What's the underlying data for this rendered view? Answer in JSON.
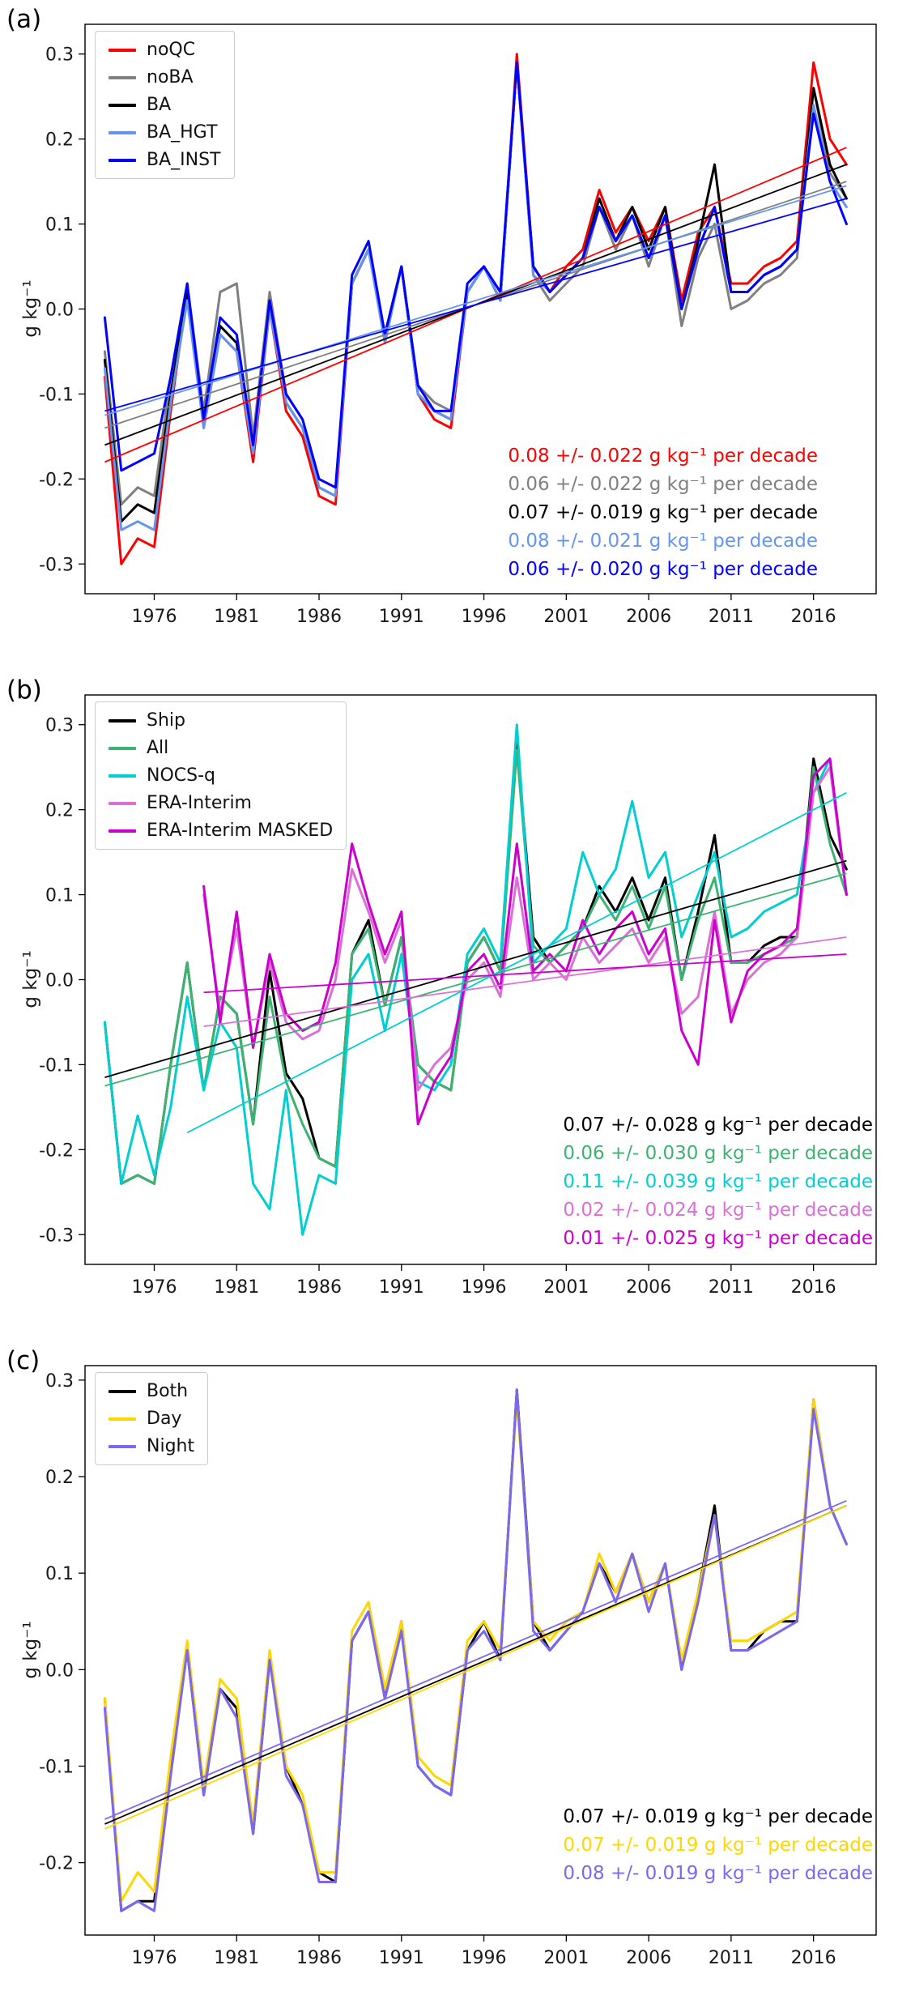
{
  "figure": {
    "background": "#ffffff",
    "panel_count": 3
  },
  "chart_data": [
    {
      "type": "line",
      "panel_label": "(a)",
      "ylabel": "g kg⁻¹",
      "x_start": 1973,
      "xlim": [
        1971.8,
        2019.8
      ],
      "ylim": [
        -0.335,
        0.335
      ],
      "x_ticks": [
        1976,
        1981,
        1986,
        1991,
        1996,
        2001,
        2006,
        2011,
        2016
      ],
      "y_ticks": [
        -0.3,
        -0.2,
        -0.1,
        0.0,
        0.1,
        0.2,
        0.3
      ],
      "legend_position": "top-left",
      "grid": false,
      "series": [
        {
          "name": "noQC",
          "color": "#ff0000",
          "values": [
            -0.08,
            -0.3,
            -0.27,
            -0.28,
            -0.12,
            0.02,
            -0.14,
            -0.03,
            -0.05,
            -0.18,
            0.0,
            -0.12,
            -0.15,
            -0.22,
            -0.23,
            0.03,
            0.07,
            -0.03,
            0.05,
            -0.1,
            -0.13,
            -0.14,
            0.02,
            0.05,
            0.01,
            0.3,
            0.05,
            0.02,
            0.05,
            0.07,
            0.14,
            0.09,
            0.12,
            0.08,
            0.12,
            0.01,
            0.09,
            0.12,
            0.03,
            0.03,
            0.05,
            0.06,
            0.08,
            0.29,
            0.2,
            0.17
          ],
          "trend": {
            "x": [
              1973,
              2018
            ],
            "y": [
              -0.18,
              0.19
            ]
          },
          "annotation": "0.08 +/- 0.022 g kg⁻¹ per decade"
        },
        {
          "name": "noBA",
          "color": "#808080",
          "values": [
            -0.05,
            -0.23,
            -0.21,
            -0.22,
            -0.08,
            0.03,
            -0.12,
            0.02,
            0.03,
            -0.15,
            0.02,
            -0.1,
            -0.13,
            -0.2,
            -0.21,
            0.03,
            0.07,
            -0.03,
            0.05,
            -0.09,
            -0.11,
            -0.12,
            0.02,
            0.05,
            0.01,
            0.29,
            0.04,
            0.01,
            0.03,
            0.05,
            0.12,
            0.07,
            0.11,
            0.05,
            0.11,
            -0.02,
            0.06,
            0.1,
            0.0,
            0.01,
            0.03,
            0.04,
            0.06,
            0.26,
            0.16,
            0.13
          ],
          "trend": {
            "x": [
              1973,
              2018
            ],
            "y": [
              -0.14,
              0.15
            ]
          },
          "annotation": "0.06 +/- 0.022 g kg⁻¹ per decade"
        },
        {
          "name": "BA",
          "color": "#000000",
          "values": [
            -0.06,
            -0.25,
            -0.23,
            -0.24,
            -0.1,
            0.02,
            -0.13,
            -0.02,
            -0.04,
            -0.17,
            0.01,
            -0.11,
            -0.14,
            -0.21,
            -0.22,
            0.03,
            0.07,
            -0.03,
            0.05,
            -0.1,
            -0.12,
            -0.13,
            0.02,
            0.05,
            0.01,
            0.29,
            0.05,
            0.02,
            0.04,
            0.06,
            0.13,
            0.08,
            0.12,
            0.07,
            0.12,
            0.0,
            0.08,
            0.17,
            0.02,
            0.02,
            0.04,
            0.05,
            0.07,
            0.26,
            0.17,
            0.13
          ],
          "trend": {
            "x": [
              1973,
              2018
            ],
            "y": [
              -0.16,
              0.17
            ]
          },
          "annotation": "0.07 +/- 0.019 g kg⁻¹ per decade"
        },
        {
          "name": "BA_HGT",
          "color": "#6495ed",
          "values": [
            -0.07,
            -0.26,
            -0.25,
            -0.26,
            -0.11,
            0.01,
            -0.14,
            -0.03,
            -0.05,
            -0.17,
            0.0,
            -0.11,
            -0.14,
            -0.21,
            -0.22,
            0.03,
            0.07,
            -0.04,
            0.05,
            -0.1,
            -0.12,
            -0.13,
            0.02,
            0.05,
            0.01,
            0.29,
            0.04,
            0.02,
            0.04,
            0.06,
            0.12,
            0.08,
            0.11,
            0.06,
            0.11,
            0.0,
            0.07,
            0.12,
            0.02,
            0.02,
            0.04,
            0.05,
            0.07,
            0.24,
            0.15,
            0.12
          ],
          "trend": {
            "x": [
              1973,
              2018
            ],
            "y": [
              -0.125,
              0.145
            ]
          },
          "annotation": "0.08 +/- 0.021 g kg⁻¹ per decade"
        },
        {
          "name": "BA_INST",
          "color": "#0000ff",
          "values": [
            -0.01,
            -0.19,
            -0.18,
            -0.17,
            -0.08,
            0.03,
            -0.13,
            -0.01,
            -0.03,
            -0.16,
            0.01,
            -0.1,
            -0.13,
            -0.2,
            -0.21,
            0.04,
            0.08,
            -0.03,
            0.05,
            -0.09,
            -0.12,
            -0.12,
            0.03,
            0.05,
            0.02,
            0.29,
            0.05,
            0.02,
            0.04,
            0.06,
            0.12,
            0.08,
            0.11,
            0.06,
            0.11,
            0.0,
            0.07,
            0.12,
            0.02,
            0.02,
            0.04,
            0.05,
            0.07,
            0.23,
            0.15,
            0.1
          ],
          "trend": {
            "x": [
              1973,
              2018
            ],
            "y": [
              -0.12,
              0.13
            ]
          },
          "annotation": "0.06 +/- 0.020 g kg⁻¹ per decade"
        }
      ]
    },
    {
      "type": "line",
      "panel_label": "(b)",
      "ylabel": "g kg⁻¹",
      "x_start": 1973,
      "xlim": [
        1971.8,
        2019.8
      ],
      "ylim": [
        -0.335,
        0.335
      ],
      "x_ticks": [
        1976,
        1981,
        1986,
        1991,
        1996,
        2001,
        2006,
        2011,
        2016
      ],
      "y_ticks": [
        -0.3,
        -0.2,
        -0.1,
        0.0,
        0.1,
        0.2,
        0.3
      ],
      "legend_position": "top-left",
      "grid": false,
      "series": [
        {
          "name": "Ship",
          "color": "#000000",
          "values": [
            -0.05,
            -0.24,
            -0.23,
            -0.24,
            -0.1,
            0.02,
            -0.13,
            -0.02,
            -0.04,
            -0.17,
            0.01,
            -0.11,
            -0.14,
            -0.21,
            -0.22,
            0.03,
            0.07,
            -0.03,
            0.05,
            -0.1,
            -0.12,
            -0.13,
            0.02,
            0.05,
            0.01,
            0.28,
            0.05,
            0.02,
            0.04,
            0.06,
            0.11,
            0.08,
            0.12,
            0.07,
            0.12,
            0.0,
            0.08,
            0.17,
            0.02,
            0.02,
            0.04,
            0.05,
            0.05,
            0.26,
            0.17,
            0.13
          ],
          "trend": {
            "x": [
              1973,
              2018
            ],
            "y": [
              -0.115,
              0.14
            ]
          },
          "annotation": "0.07 +/- 0.028 g kg⁻¹ per decade"
        },
        {
          "name": "All",
          "color": "#3cb371",
          "values": [
            -0.05,
            -0.24,
            -0.23,
            -0.24,
            -0.1,
            0.02,
            -0.13,
            -0.02,
            -0.04,
            -0.17,
            -0.02,
            -0.12,
            -0.17,
            -0.21,
            -0.22,
            0.03,
            0.06,
            -0.03,
            0.05,
            -0.1,
            -0.12,
            -0.13,
            0.02,
            0.05,
            0.01,
            0.27,
            0.04,
            0.02,
            0.04,
            0.06,
            0.1,
            0.07,
            0.11,
            0.06,
            0.11,
            0.0,
            0.07,
            0.12,
            0.02,
            0.02,
            0.03,
            0.04,
            0.05,
            0.25,
            0.16,
            0.1
          ],
          "trend": {
            "x": [
              1973,
              2018
            ],
            "y": [
              -0.125,
              0.125
            ]
          },
          "annotation": "0.06 +/- 0.030 g kg⁻¹ per decade"
        },
        {
          "name": "NOCS-q",
          "color": "#00ced1",
          "values": [
            -0.05,
            -0.24,
            -0.16,
            -0.23,
            -0.15,
            -0.02,
            -0.13,
            -0.05,
            -0.08,
            -0.24,
            -0.27,
            -0.13,
            -0.3,
            -0.23,
            -0.24,
            0.0,
            0.03,
            -0.06,
            0.03,
            -0.12,
            -0.13,
            -0.1,
            0.03,
            0.06,
            0.02,
            0.3,
            0.02,
            0.04,
            0.06,
            0.15,
            0.1,
            0.13,
            0.21,
            0.12,
            0.15,
            0.05,
            0.1,
            0.15,
            0.05,
            0.06,
            0.08,
            0.09,
            0.1,
            0.22,
            0.26,
            0.1
          ],
          "trend": {
            "x": [
              1978,
              2018
            ],
            "y": [
              -0.18,
              0.22
            ]
          },
          "annotation": "0.11 +/- 0.039 g kg⁻¹ per decade"
        },
        {
          "name": "ERA-Interim",
          "color": "#da70d6",
          "values": [
            null,
            null,
            null,
            null,
            null,
            null,
            0.1,
            -0.04,
            0.06,
            -0.08,
            0.02,
            -0.05,
            -0.07,
            -0.06,
            0.0,
            0.13,
            0.08,
            0.02,
            0.07,
            -0.13,
            -0.1,
            -0.08,
            0.0,
            0.02,
            -0.02,
            0.12,
            0.0,
            0.02,
            0.0,
            0.05,
            0.02,
            0.04,
            0.06,
            0.02,
            0.05,
            -0.04,
            -0.02,
            0.08,
            -0.04,
            0.0,
            0.02,
            0.03,
            0.05,
            0.22,
            0.25,
            0.1
          ],
          "trend": {
            "x": [
              1979,
              2018
            ],
            "y": [
              -0.055,
              0.05
            ]
          },
          "annotation": "0.02 +/- 0.024 g kg⁻¹ per decade"
        },
        {
          "name": "ERA-Interim MASKED",
          "color": "#cc00cc",
          "values": [
            null,
            null,
            null,
            null,
            null,
            null,
            0.11,
            -0.05,
            0.08,
            -0.08,
            0.03,
            -0.04,
            -0.06,
            -0.05,
            0.02,
            0.16,
            0.09,
            0.03,
            0.08,
            -0.17,
            -0.12,
            -0.09,
            0.01,
            0.03,
            -0.01,
            0.16,
            0.01,
            0.03,
            0.01,
            0.07,
            0.03,
            0.06,
            0.08,
            0.03,
            0.06,
            -0.06,
            -0.1,
            0.07,
            -0.05,
            0.01,
            0.03,
            0.04,
            0.06,
            0.24,
            0.26,
            0.1
          ],
          "trend": {
            "x": [
              1979,
              2018
            ],
            "y": [
              -0.015,
              0.03
            ]
          },
          "annotation": "0.01 +/- 0.025 g kg⁻¹ per decade"
        }
      ]
    },
    {
      "type": "line",
      "panel_label": "(c)",
      "ylabel": "g kg⁻¹",
      "x_start": 1973,
      "xlim": [
        1971.8,
        2019.8
      ],
      "ylim": [
        -0.275,
        0.315
      ],
      "x_ticks": [
        1976,
        1981,
        1986,
        1991,
        1996,
        2001,
        2006,
        2011,
        2016
      ],
      "y_ticks": [
        -0.2,
        -0.1,
        0.0,
        0.1,
        0.2,
        0.3
      ],
      "legend_position": "top-left",
      "grid": false,
      "series": [
        {
          "name": "Both",
          "color": "#000000",
          "values": [
            -0.03,
            -0.25,
            -0.24,
            -0.24,
            -0.1,
            0.02,
            -0.13,
            -0.02,
            -0.04,
            -0.17,
            0.01,
            -0.1,
            -0.14,
            -0.21,
            -0.22,
            0.03,
            0.06,
            -0.03,
            0.05,
            -0.1,
            -0.12,
            -0.13,
            0.02,
            0.05,
            0.01,
            0.29,
            0.05,
            0.02,
            0.04,
            0.06,
            0.11,
            0.08,
            0.12,
            0.07,
            0.11,
            0.0,
            0.08,
            0.17,
            0.02,
            0.02,
            0.04,
            0.05,
            0.05,
            0.28,
            0.17,
            0.13
          ],
          "trend": {
            "x": [
              1973,
              2018
            ],
            "y": [
              -0.16,
              0.17
            ]
          },
          "annotation": "0.07 +/- 0.019 g kg⁻¹ per decade"
        },
        {
          "name": "Day",
          "color": "#ffd700",
          "values": [
            -0.03,
            -0.24,
            -0.21,
            -0.23,
            -0.09,
            0.03,
            -0.12,
            -0.01,
            -0.03,
            -0.16,
            0.02,
            -0.1,
            -0.13,
            -0.21,
            -0.21,
            0.04,
            0.07,
            -0.02,
            0.05,
            -0.09,
            -0.11,
            -0.12,
            0.03,
            0.05,
            0.02,
            0.28,
            0.05,
            0.03,
            0.05,
            0.06,
            0.12,
            0.08,
            0.12,
            0.07,
            0.11,
            0.01,
            0.08,
            0.16,
            0.03,
            0.03,
            0.04,
            0.05,
            0.06,
            0.28,
            0.17,
            0.13
          ],
          "trend": {
            "x": [
              1973,
              2018
            ],
            "y": [
              -0.165,
              0.17
            ]
          },
          "annotation": "0.07 +/- 0.019 g kg⁻¹ per decade"
        },
        {
          "name": "Night",
          "color": "#7b68ee",
          "values": [
            -0.04,
            -0.25,
            -0.24,
            -0.25,
            -0.11,
            0.02,
            -0.13,
            -0.02,
            -0.05,
            -0.17,
            0.01,
            -0.11,
            -0.14,
            -0.22,
            -0.22,
            0.03,
            0.06,
            -0.03,
            0.04,
            -0.1,
            -0.12,
            -0.13,
            0.02,
            0.04,
            0.01,
            0.29,
            0.04,
            0.02,
            0.04,
            0.06,
            0.11,
            0.07,
            0.12,
            0.06,
            0.11,
            0.0,
            0.07,
            0.16,
            0.02,
            0.02,
            0.03,
            0.04,
            0.05,
            0.27,
            0.17,
            0.13
          ],
          "trend": {
            "x": [
              1973,
              2018
            ],
            "y": [
              -0.155,
              0.175
            ]
          },
          "annotation": "0.08 +/- 0.019 g kg⁻¹ per decade"
        }
      ]
    }
  ]
}
